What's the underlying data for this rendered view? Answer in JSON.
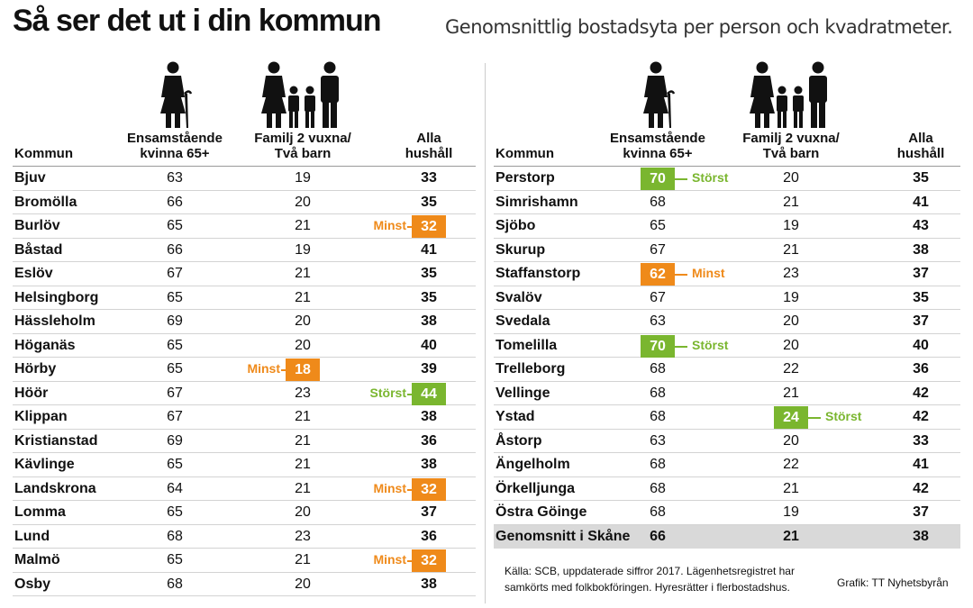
{
  "title": "Så ser det ut i din kommun",
  "subtitle": "Genomsnittlig bostadsyta per person och kvadratmeter.",
  "colors": {
    "storst": "#7ab62f",
    "minst": "#ef8a1a",
    "avg_row": "#d9d9d9"
  },
  "icons": [
    "elderly-woman-icon",
    "family-icon"
  ],
  "chart_data": {
    "type": "table",
    "title": "Så ser det ut i din kommun",
    "subtitle": "Genomsnittlig bostadsyta per person och kvadratmeter.",
    "columns": {
      "kommun": "Kommun",
      "c1": "Ensamstående\nkvinna 65+",
      "c2": "Familj 2 vuxna/\nTvå barn",
      "c3": "Alla\nhushåll"
    },
    "left_rows": [
      {
        "name": "Bjuv",
        "c1": "63",
        "c2": "19",
        "c3": "33"
      },
      {
        "name": "Bromölla",
        "c1": "66",
        "c2": "20",
        "c3": "35"
      },
      {
        "name": "Burlöv",
        "c1": "65",
        "c2": "21",
        "c3": "32",
        "hl": "c3",
        "hl_type": "minst",
        "label": "Minst"
      },
      {
        "name": "Båstad",
        "c1": "66",
        "c2": "19",
        "c3": "41"
      },
      {
        "name": "Eslöv",
        "c1": "67",
        "c2": "21",
        "c3": "35"
      },
      {
        "name": "Helsingborg",
        "c1": "65",
        "c2": "21",
        "c3": "35"
      },
      {
        "name": "Hässleholm",
        "c1": "69",
        "c2": "20",
        "c3": "38"
      },
      {
        "name": "Höganäs",
        "c1": "65",
        "c2": "20",
        "c3": "40"
      },
      {
        "name": "Hörby",
        "c1": "65",
        "c2": "18",
        "c3": "39",
        "hl": "c2",
        "hl_type": "minst",
        "label": "Minst"
      },
      {
        "name": "Höör",
        "c1": "67",
        "c2": "23",
        "c3": "44",
        "hl": "c3",
        "hl_type": "storst",
        "label": "Störst"
      },
      {
        "name": "Klippan",
        "c1": "67",
        "c2": "21",
        "c3": "38"
      },
      {
        "name": "Kristianstad",
        "c1": "69",
        "c2": "21",
        "c3": "36"
      },
      {
        "name": "Kävlinge",
        "c1": "65",
        "c2": "21",
        "c3": "38"
      },
      {
        "name": "Landskrona",
        "c1": "64",
        "c2": "21",
        "c3": "32",
        "hl": "c3",
        "hl_type": "minst",
        "label": "Minst"
      },
      {
        "name": "Lomma",
        "c1": "65",
        "c2": "20",
        "c3": "37"
      },
      {
        "name": "Lund",
        "c1": "68",
        "c2": "23",
        "c3": "36"
      },
      {
        "name": "Malmö",
        "c1": "65",
        "c2": "21",
        "c3": "32",
        "hl": "c3",
        "hl_type": "minst",
        "label": "Minst"
      },
      {
        "name": "Osby",
        "c1": "68",
        "c2": "20",
        "c3": "38"
      }
    ],
    "right_rows": [
      {
        "name": "Perstorp",
        "c1": "70",
        "c2": "20",
        "c3": "35",
        "hl": "c1",
        "hl_type": "storst",
        "label": "Störst"
      },
      {
        "name": "Simrishamn",
        "c1": "68",
        "c2": "21",
        "c3": "41"
      },
      {
        "name": "Sjöbo",
        "c1": "65",
        "c2": "19",
        "c3": "43"
      },
      {
        "name": "Skurup",
        "c1": "67",
        "c2": "21",
        "c3": "38"
      },
      {
        "name": "Staffanstorp",
        "c1": "62",
        "c2": "23",
        "c3": "37",
        "hl": "c1",
        "hl_type": "minst",
        "label": "Minst"
      },
      {
        "name": "Svalöv",
        "c1": "67",
        "c2": "19",
        "c3": "35"
      },
      {
        "name": "Svedala",
        "c1": "63",
        "c2": "20",
        "c3": "37"
      },
      {
        "name": "Tomelilla",
        "c1": "70",
        "c2": "20",
        "c3": "40",
        "hl": "c1",
        "hl_type": "storst",
        "label": "Störst"
      },
      {
        "name": "Trelleborg",
        "c1": "68",
        "c2": "22",
        "c3": "36"
      },
      {
        "name": "Vellinge",
        "c1": "68",
        "c2": "21",
        "c3": "42"
      },
      {
        "name": "Ystad",
        "c1": "68",
        "c2": "24",
        "c3": "42",
        "hl": "c2",
        "hl_type": "storst",
        "label": "Störst"
      },
      {
        "name": "Åstorp",
        "c1": "63",
        "c2": "20",
        "c3": "33"
      },
      {
        "name": "Ängelholm",
        "c1": "68",
        "c2": "22",
        "c3": "41"
      },
      {
        "name": "Örkelljunga",
        "c1": "68",
        "c2": "21",
        "c3": "42"
      },
      {
        "name": "Östra Göinge",
        "c1": "68",
        "c2": "19",
        "c3": "37"
      },
      {
        "name": "Genomsnitt i Skåne",
        "c1": "66",
        "c2": "21",
        "c3": "38",
        "avg": true
      }
    ]
  },
  "source": "Källa: SCB, uppdaterade siffror 2017. Lägenhetsregistret har samkörts med folkbokföringen. Hyresrätter i flerbostadshus.",
  "credit": "Grafik: TT Nyhetsbyrån"
}
